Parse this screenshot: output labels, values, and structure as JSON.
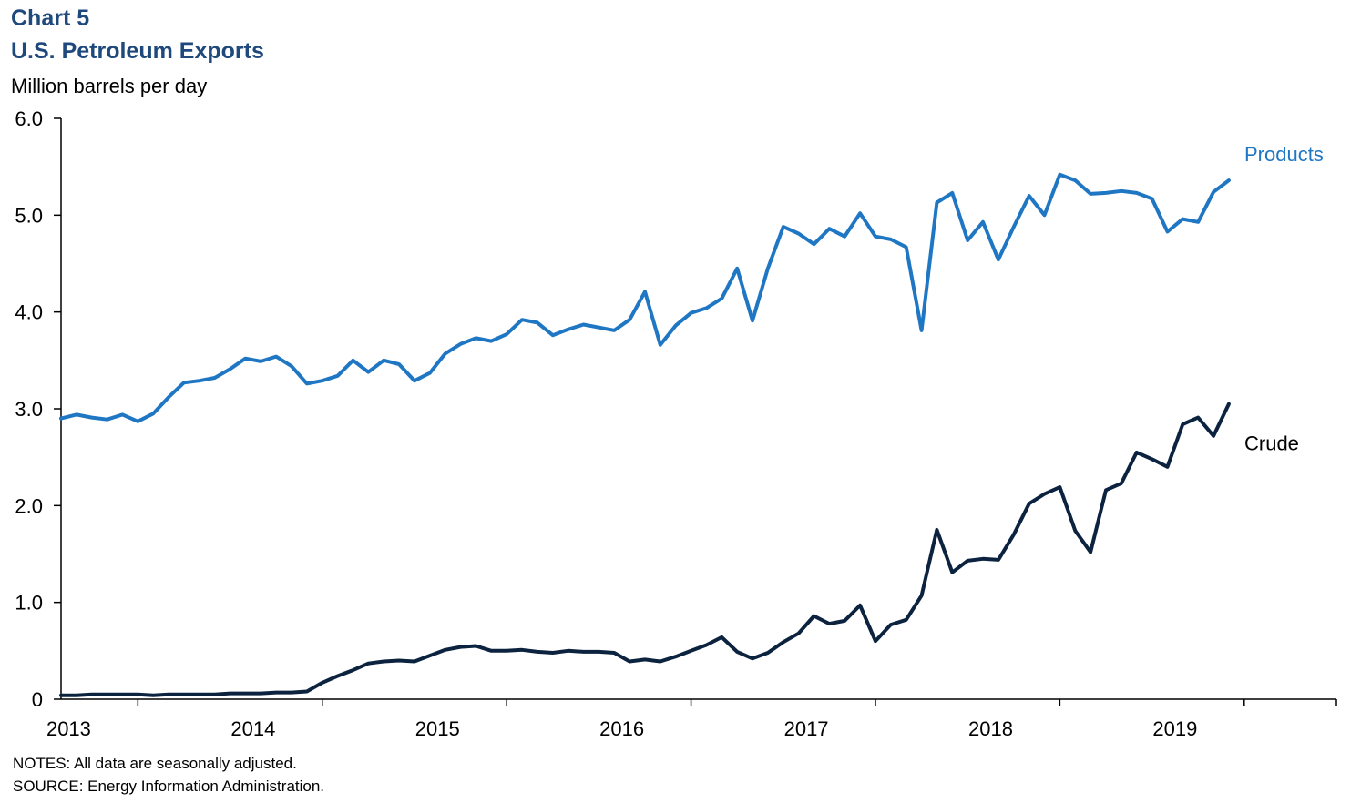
{
  "header": {
    "chart_number": "Chart 5",
    "title": "U.S. Petroleum Exports",
    "y_unit": "Million barrels per day"
  },
  "footer": {
    "notes": "NOTES: All data are seasonally adjusted.",
    "source": "SOURCE: Energy Information Administration."
  },
  "chart_data": {
    "type": "line",
    "title": "U.S. Petroleum Exports",
    "ylabel": "Million barrels per day",
    "xlabel": "",
    "ylim": [
      0,
      6
    ],
    "yticks": [
      "0",
      "1.0",
      "2.0",
      "3.0",
      "4.0",
      "5.0",
      "6.0"
    ],
    "x_axis": {
      "start": "2012-08",
      "end": "2019-07",
      "tick_labels": [
        "2013",
        "2014",
        "2015",
        "2016",
        "2017",
        "2018",
        "2019"
      ]
    },
    "grid": false,
    "legend": "inline-labels-right",
    "series": [
      {
        "name": "Products",
        "color": "#1f77c4",
        "start": "2012-08",
        "values": [
          2.9,
          2.94,
          2.91,
          2.89,
          2.94,
          2.87,
          2.95,
          3.12,
          3.27,
          3.29,
          3.32,
          3.41,
          3.52,
          3.49,
          3.54,
          3.44,
          3.26,
          3.29,
          3.34,
          3.5,
          3.38,
          3.5,
          3.46,
          3.29,
          3.37,
          3.57,
          3.67,
          3.73,
          3.7,
          3.77,
          3.92,
          3.89,
          3.76,
          3.82,
          3.87,
          3.84,
          3.81,
          3.92,
          4.21,
          3.66,
          3.86,
          3.99,
          4.04,
          4.14,
          4.45,
          3.91,
          4.45,
          4.88,
          4.81,
          4.7,
          4.86,
          4.78,
          5.02,
          4.78,
          4.75,
          4.67,
          3.81,
          5.13,
          5.23,
          4.74,
          4.93,
          4.54,
          4.88,
          5.2,
          5.0,
          5.42,
          5.36,
          5.22,
          5.23,
          5.25,
          5.23,
          5.17,
          4.83,
          4.96,
          4.93,
          5.24,
          5.36
        ]
      },
      {
        "name": "Crude",
        "color": "#0c2340",
        "start": "2012-08",
        "values": [
          0.04,
          0.04,
          0.05,
          0.05,
          0.05,
          0.05,
          0.04,
          0.05,
          0.05,
          0.05,
          0.05,
          0.06,
          0.06,
          0.06,
          0.07,
          0.07,
          0.08,
          0.17,
          0.24,
          0.3,
          0.37,
          0.39,
          0.4,
          0.39,
          0.45,
          0.51,
          0.54,
          0.55,
          0.5,
          0.5,
          0.51,
          0.49,
          0.48,
          0.5,
          0.49,
          0.49,
          0.48,
          0.39,
          0.41,
          0.39,
          0.44,
          0.5,
          0.56,
          0.64,
          0.49,
          0.42,
          0.48,
          0.59,
          0.68,
          0.86,
          0.78,
          0.81,
          0.97,
          0.6,
          0.77,
          0.82,
          1.07,
          1.75,
          1.31,
          1.43,
          1.45,
          1.44,
          1.7,
          2.02,
          2.12,
          2.19,
          1.74,
          1.52,
          2.16,
          2.23,
          2.55,
          2.48,
          2.4,
          2.84,
          2.91,
          2.72,
          3.05
        ]
      }
    ]
  }
}
